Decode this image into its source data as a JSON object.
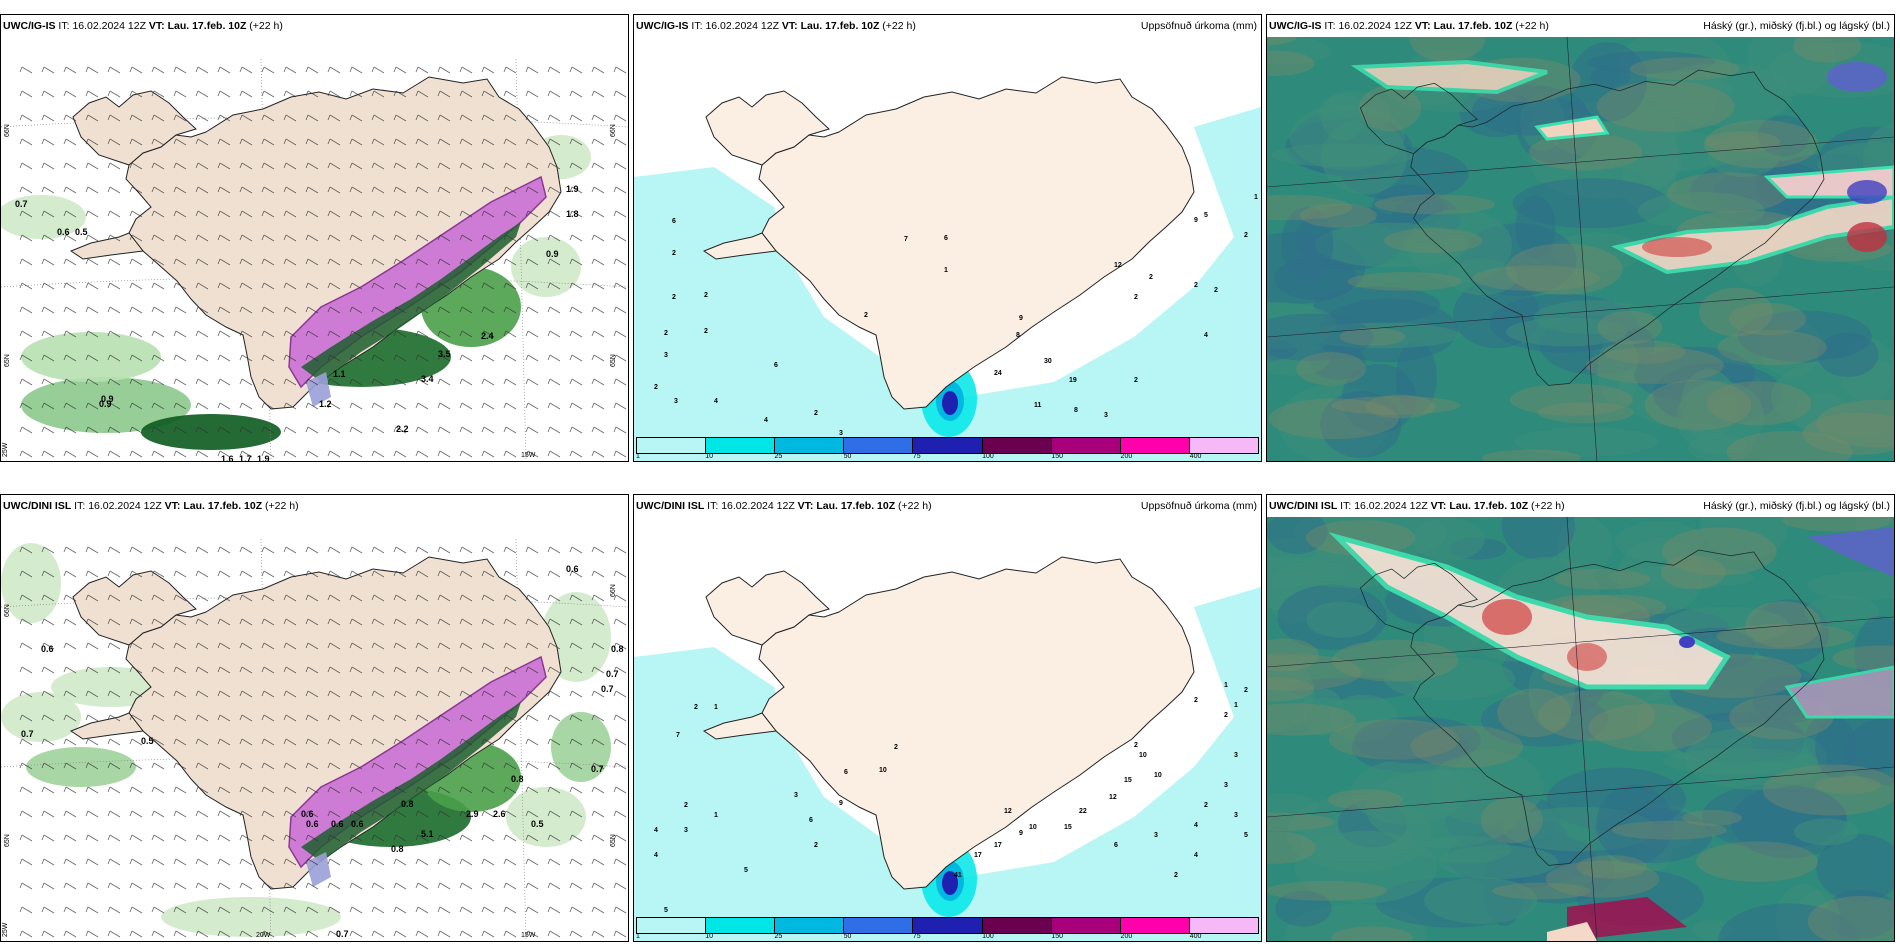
{
  "panels": [
    {
      "id": "p1",
      "model": "UWC/IG-IS",
      "run_label": "IT:",
      "run_time": "16.02.2024 12Z",
      "valid_label": "VT:",
      "valid_time": "Lau. 17.feb. 10Z",
      "lead": "(+22 h)",
      "variable": "",
      "kind": "wind",
      "labels": [
        "0.7",
        "0.6",
        "0.5",
        "1.9",
        "1.8",
        "0.9",
        "2.2",
        "3.4",
        "3.5",
        "2.4",
        "1.1",
        "1.2",
        "0.9",
        "0.9",
        "1.6",
        "1.7",
        "1.9"
      ],
      "axis": [
        "66N",
        "66N",
        "65N",
        "65N",
        "25W",
        "15W"
      ]
    },
    {
      "id": "p2",
      "model": "UWC/IG-IS",
      "run_label": "IT:",
      "run_time": "16.02.2024 12Z",
      "valid_label": "VT:",
      "valid_time": "Lau. 17.feb. 10Z",
      "lead": "(+22 h)",
      "variable": "Uppsöfnuð úrkoma (mm)",
      "kind": "precip",
      "labels": [
        "6",
        "2",
        "2",
        "2",
        "2",
        "2",
        "3",
        "2",
        "3",
        "4",
        "6",
        "4",
        "2",
        "3",
        "5",
        "2",
        "7",
        "6",
        "1",
        "9",
        "8",
        "24",
        "30",
        "19",
        "11",
        "8",
        "12",
        "2",
        "2",
        "9",
        "5",
        "2",
        "1",
        "2",
        "4",
        "2",
        "3",
        "2"
      ]
    },
    {
      "id": "p3",
      "model": "UWC/IG-IS",
      "run_label": "IT:",
      "run_time": "16.02.2024 12Z",
      "valid_label": "VT:",
      "valid_time": "Lau. 17.feb. 10Z",
      "lead": "(+22 h)",
      "variable": "Háský (gr.), miðský (fj.bl.) og lágský (bl.)",
      "kind": "cloud"
    },
    {
      "id": "p4",
      "model": "UWC/DINI ISL",
      "run_label": "IT:",
      "run_time": "16.02.2024 12Z",
      "valid_label": "VT:",
      "valid_time": "Lau. 17.feb. 10Z",
      "lead": "(+22 h)",
      "variable": "",
      "kind": "wind",
      "labels": [
        "0.6",
        "0.6",
        "0.7",
        "0.5",
        "0.6",
        "0.8",
        "0.7",
        "0.7",
        "0.7",
        "0.5",
        "0.8",
        "0.6",
        "0.8",
        "0.6",
        "0.6",
        "5.1",
        "2.9",
        "2.6",
        "0.8",
        "0.7"
      ],
      "axis": [
        "66N",
        "66N",
        "65N",
        "65N",
        "25W",
        "20W",
        "15W"
      ]
    },
    {
      "id": "p5",
      "model": "UWC/DINI ISL",
      "run_label": "IT:",
      "run_time": "16.02.2024 12Z",
      "valid_label": "VT:",
      "valid_time": "Lau. 17.feb. 10Z",
      "lead": "(+22 h)",
      "variable": "Uppsöfnuð úrkoma (mm)",
      "kind": "precip",
      "labels": [
        "2",
        "1",
        "7",
        "2",
        "4",
        "3",
        "4",
        "1",
        "5",
        "5",
        "3",
        "6",
        "2",
        "9",
        "6",
        "10",
        "2",
        "41",
        "17",
        "17",
        "9",
        "12",
        "10",
        "15",
        "22",
        "12",
        "15",
        "10",
        "10",
        "2",
        "1",
        "1",
        "2",
        "2",
        "3",
        "3",
        "2",
        "4",
        "3",
        "6",
        "4",
        "2",
        "3",
        "5",
        "2",
        "4"
      ]
    },
    {
      "id": "p6",
      "model": "UWC/DINI ISL",
      "run_label": "IT:",
      "run_time": "16.02.2024 12Z",
      "valid_label": "VT:",
      "valid_time": "Lau. 17.feb. 10Z",
      "lead": "(+22 h)",
      "variable": "Háský (gr.), miðský (fj.bl.) og lágský (bl.)",
      "kind": "cloud"
    }
  ],
  "colorbar": {
    "ticks": [
      "1",
      "10",
      "25",
      "50",
      "75",
      "100",
      "150",
      "200",
      "400"
    ],
    "colors": [
      "#b8f5f5",
      "#00e6e6",
      "#00b8e0",
      "#2f6ee6",
      "#2020b0",
      "#6a0050",
      "#a8007a",
      "#ff00aa",
      "#f6b8f6"
    ]
  },
  "colors": {
    "land": "#efe0d2",
    "sea": "#ffffff",
    "precip_sea": "#b8f5f5",
    "cloud_bg": "#2e8a7a"
  }
}
